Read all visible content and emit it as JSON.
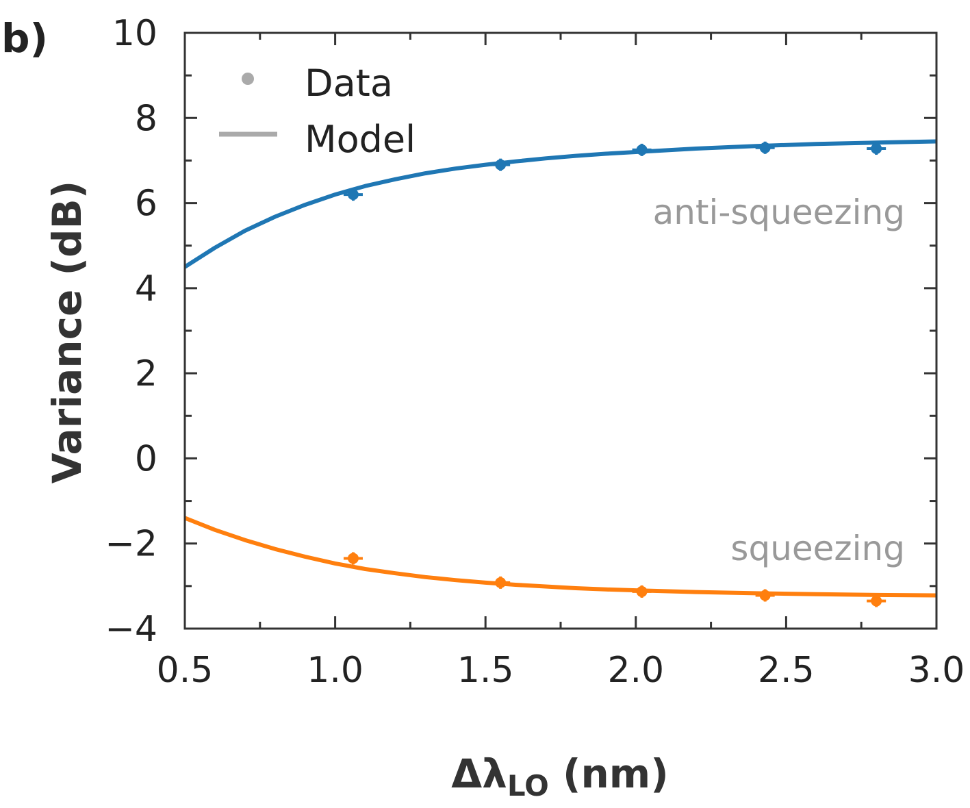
{
  "panel_label": "b)",
  "chart_data": {
    "type": "scatter",
    "title": "",
    "xlabel_main": "Δλ",
    "xlabel_sub": "LO",
    "xlabel_unit": " (nm)",
    "ylabel": "Variance (dB)",
    "xlim": [
      0.5,
      3.0
    ],
    "ylim": [
      -4,
      10
    ],
    "xticks": [
      0.5,
      1.0,
      1.5,
      2.0,
      2.5,
      3.0
    ],
    "xtick_labels": [
      "0.5",
      "1.0",
      "1.5",
      "2.0",
      "2.5",
      "3.0"
    ],
    "yticks": [
      -4,
      -2,
      0,
      2,
      4,
      6,
      8,
      10
    ],
    "ytick_labels": [
      "−4",
      "−2",
      "0",
      "2",
      "4",
      "6",
      "8",
      "10"
    ],
    "legend": {
      "placement": "top-left",
      "entries": [
        "Data",
        "Model"
      ],
      "color": "#aaaaaa"
    },
    "series": [
      {
        "name": "anti-squeezing",
        "color": "#1f77b4",
        "data_x": [
          1.06,
          1.55,
          2.02,
          2.43,
          2.8
        ],
        "data_y": [
          6.2,
          6.9,
          7.25,
          7.3,
          7.28
        ],
        "model_x": [
          0.5,
          0.6,
          0.7,
          0.8,
          0.9,
          1.0,
          1.1,
          1.2,
          1.3,
          1.4,
          1.5,
          1.6,
          1.7,
          1.8,
          1.9,
          2.0,
          2.2,
          2.4,
          2.6,
          2.8,
          3.0
        ],
        "model_y": [
          4.5,
          4.95,
          5.35,
          5.68,
          5.96,
          6.2,
          6.4,
          6.56,
          6.7,
          6.81,
          6.9,
          6.98,
          7.05,
          7.11,
          7.16,
          7.2,
          7.28,
          7.34,
          7.39,
          7.42,
          7.45
        ]
      },
      {
        "name": "squeezing",
        "color": "#ff7f0e",
        "data_x": [
          1.06,
          1.55,
          2.02,
          2.43,
          2.8
        ],
        "data_y": [
          -2.35,
          -2.92,
          -3.13,
          -3.22,
          -3.35
        ],
        "model_x": [
          0.5,
          0.6,
          0.7,
          0.8,
          0.9,
          1.0,
          1.1,
          1.2,
          1.3,
          1.4,
          1.5,
          1.6,
          1.7,
          1.8,
          1.9,
          2.0,
          2.2,
          2.4,
          2.6,
          2.8,
          3.0
        ],
        "model_y": [
          -1.4,
          -1.68,
          -1.92,
          -2.13,
          -2.31,
          -2.47,
          -2.6,
          -2.7,
          -2.79,
          -2.86,
          -2.92,
          -2.97,
          -3.01,
          -3.05,
          -3.08,
          -3.1,
          -3.14,
          -3.17,
          -3.19,
          -3.21,
          -3.22
        ]
      }
    ],
    "annotations": [
      "anti-squeezing",
      "squeezing"
    ]
  }
}
